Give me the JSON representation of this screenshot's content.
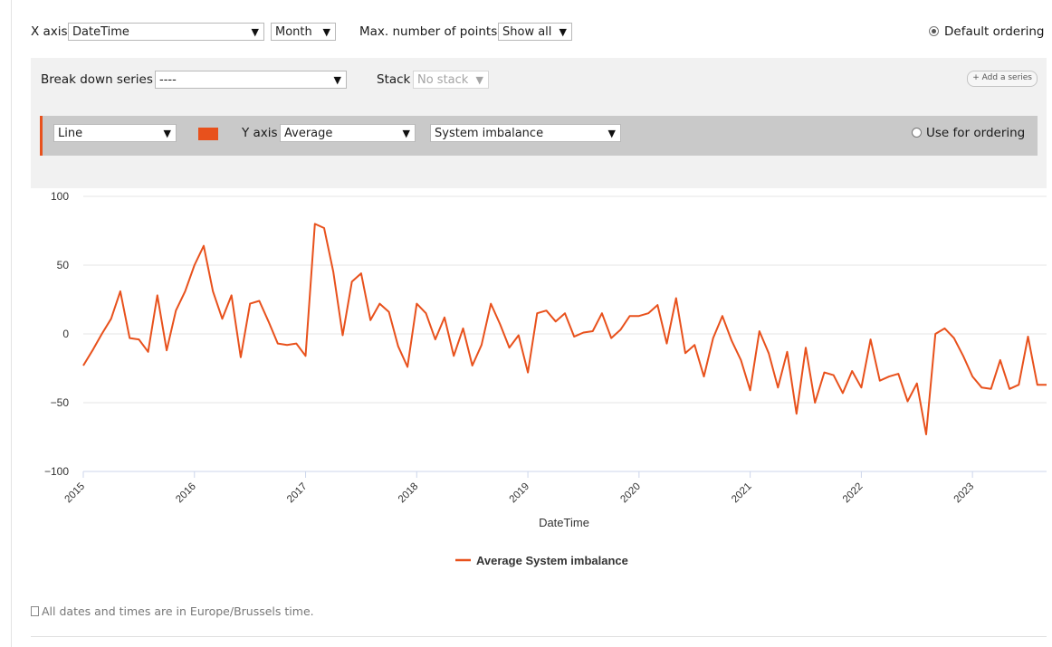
{
  "top": {
    "x_axis_label": "X axis",
    "x_axis_value": "DateTime",
    "interval_value": "Month",
    "max_points_label": "Max. number of points",
    "max_points_value": "Show all",
    "default_ordering_label": "Default ordering"
  },
  "panel": {
    "breakdown_label": "Break down series",
    "breakdown_value": "----",
    "stack_label": "Stack",
    "stack_value": "No stack",
    "add_series_label": "+ Add a series",
    "series": {
      "chart_type": "Line",
      "color": "#e8511c",
      "y_axis_label": "Y axis",
      "aggregation": "Average",
      "field": "System imbalance",
      "use_for_ordering_label": "Use for ordering"
    }
  },
  "footnote": "All dates and times are in Europe/Brussels time.",
  "icons": {
    "caret": "chevron-down-icon",
    "info": "info-icon"
  },
  "chart_data": {
    "type": "line",
    "xlabel": "DateTime",
    "ylabel": "",
    "ylim": [
      -100,
      100
    ],
    "yticks": [
      100,
      50,
      0,
      -50,
      -100
    ],
    "yticklabels": [
      "100",
      "50",
      "0",
      "−50",
      "−100"
    ],
    "xticks": [
      "2015",
      "2016",
      "2017",
      "2018",
      "2019",
      "2020",
      "2021",
      "2022",
      "2023"
    ],
    "grid": true,
    "legend": "bottom-center",
    "series": [
      {
        "name": "Average System imbalance",
        "color": "#e8511c",
        "x": [
          "2015-01",
          "2015-02",
          "2015-03",
          "2015-04",
          "2015-05",
          "2015-06",
          "2015-07",
          "2015-08",
          "2015-09",
          "2015-10",
          "2015-11",
          "2015-12",
          "2016-01",
          "2016-02",
          "2016-03",
          "2016-04",
          "2016-05",
          "2016-06",
          "2016-07",
          "2016-08",
          "2016-09",
          "2016-10",
          "2016-11",
          "2016-12",
          "2017-01",
          "2017-02",
          "2017-03",
          "2017-04",
          "2017-05",
          "2017-06",
          "2017-07",
          "2017-08",
          "2017-09",
          "2017-10",
          "2017-11",
          "2017-12",
          "2018-01",
          "2018-02",
          "2018-03",
          "2018-04",
          "2018-05",
          "2018-06",
          "2018-07",
          "2018-08",
          "2018-09",
          "2018-10",
          "2018-11",
          "2018-12",
          "2019-01",
          "2019-02",
          "2019-03",
          "2019-04",
          "2019-05",
          "2019-06",
          "2019-07",
          "2019-08",
          "2019-09",
          "2019-10",
          "2019-11",
          "2019-12",
          "2020-01",
          "2020-02",
          "2020-03",
          "2020-04",
          "2020-05",
          "2020-06",
          "2020-07",
          "2020-08",
          "2020-09",
          "2020-10",
          "2020-11",
          "2020-12",
          "2021-01",
          "2021-02",
          "2021-03",
          "2021-04",
          "2021-05",
          "2021-06",
          "2021-07",
          "2021-08",
          "2021-09",
          "2021-10",
          "2021-11",
          "2021-12",
          "2022-01",
          "2022-02",
          "2022-03",
          "2022-04",
          "2022-05",
          "2022-06",
          "2022-07",
          "2022-08",
          "2022-09",
          "2022-10",
          "2022-11",
          "2022-12",
          "2023-01",
          "2023-02",
          "2023-03",
          "2023-04",
          "2023-05",
          "2023-06",
          "2023-07",
          "2023-08",
          "2023-09"
        ],
        "values": [
          -23,
          -12,
          0,
          11,
          31,
          -3,
          -4,
          -13,
          28,
          -12,
          17,
          31,
          50,
          64,
          31,
          11,
          28,
          -17,
          22,
          24,
          9,
          -7,
          -8,
          -7,
          -16,
          80,
          77,
          45,
          -1,
          38,
          44,
          10,
          22,
          16,
          -9,
          -24,
          22,
          15,
          -4,
          12,
          -16,
          4,
          -23,
          -8,
          22,
          7,
          -10,
          -1,
          -28,
          15,
          17,
          9,
          15,
          -2,
          1,
          2,
          15,
          -3,
          3,
          13,
          13,
          15,
          21,
          -7,
          26,
          -14,
          -8,
          -31,
          -3,
          13,
          -5,
          -19,
          -41,
          2,
          -14,
          -39,
          -13,
          -58,
          -10,
          -50,
          -28,
          -30,
          -43,
          -27,
          -39,
          -4,
          -34,
          -31,
          -29,
          -49,
          -36,
          -73,
          0,
          4,
          -3,
          -16,
          -31,
          -39,
          -40,
          -19,
          -40,
          -37,
          -2,
          -37,
          -37
        ]
      }
    ]
  }
}
